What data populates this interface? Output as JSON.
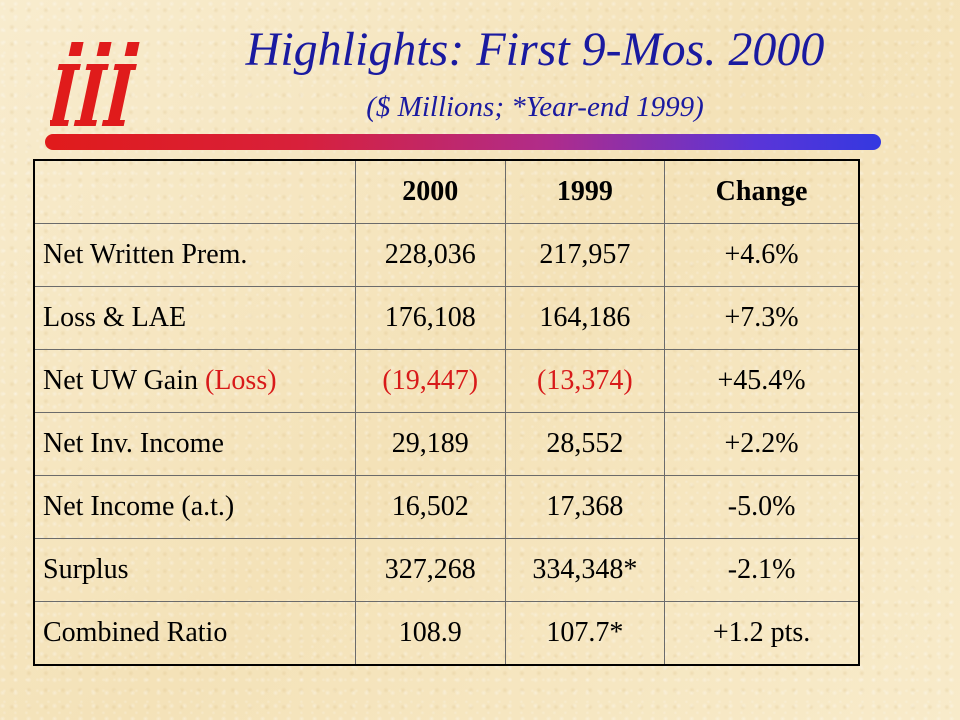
{
  "header": {
    "title": "Highlights: First 9-Mos. 2000",
    "subtitle": "($ Millions; *Year-end 1999)"
  },
  "logo": {
    "icon": "iii-logo-icon",
    "text": "iii",
    "color": "#e01b1b"
  },
  "colors": {
    "title": "#1a1aa0",
    "loss_text": "#d81a1a",
    "rule_start": "#e01b1b",
    "rule_end": "#3438e0"
  },
  "table": {
    "headers": [
      "",
      "2000",
      "1999",
      "Change"
    ],
    "rows": [
      {
        "label": "Net Written Prem.",
        "v2000": "228,036",
        "v1999": "217,957",
        "change": "+4.6%"
      },
      {
        "label": "Loss & LAE",
        "v2000": "176,108",
        "v1999": "164,186",
        "change": "+7.3%"
      },
      {
        "label": "Net UW Gain",
        "label_suffix": "(Loss)",
        "v2000": "(19,447)",
        "v1999": "(13,374)",
        "change": "+45.4%"
      },
      {
        "label": "Net Inv. Income",
        "v2000": "29,189",
        "v1999": "28,552",
        "change": "+2.2%"
      },
      {
        "label": "Net Income (a.t.)",
        "v2000": "16,502",
        "v1999": "17,368",
        "change": "-5.0%"
      },
      {
        "label": "Surplus",
        "v2000": "327,268",
        "v1999": "334,348*",
        "change": "-2.1%"
      },
      {
        "label": "Combined Ratio",
        "v2000": "108.9",
        "v1999": "107.7*",
        "change": "+1.2 pts."
      }
    ]
  }
}
